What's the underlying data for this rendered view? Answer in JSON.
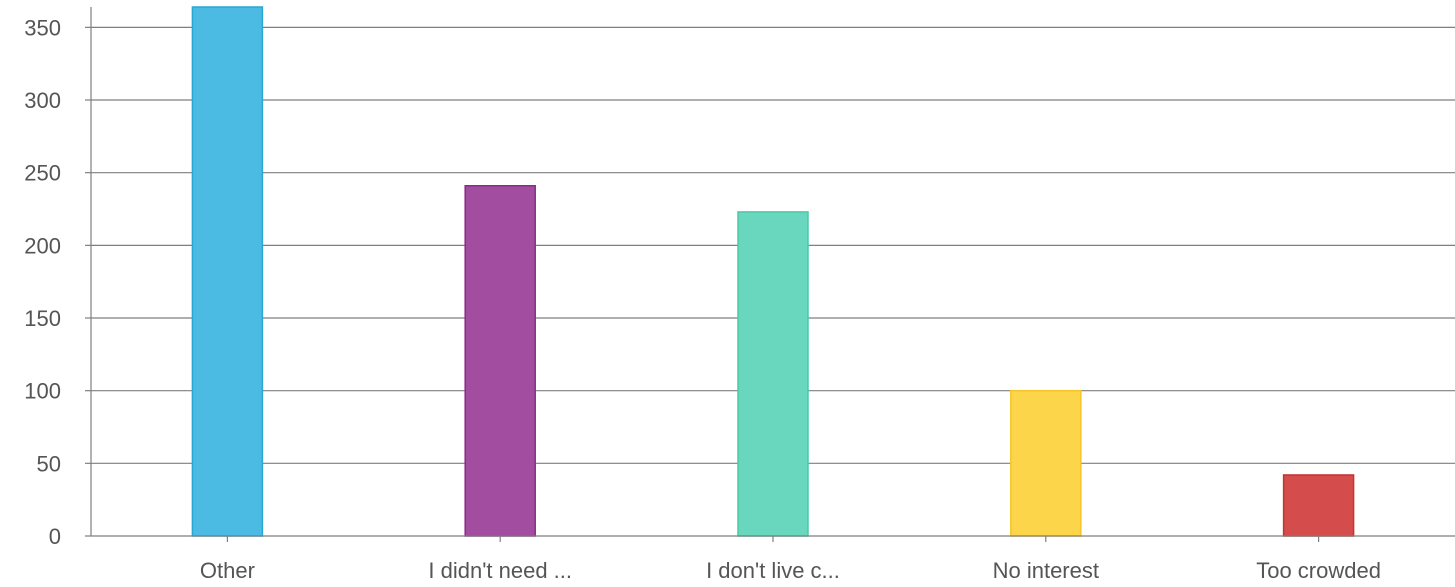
{
  "chart_data": {
    "type": "bar",
    "title": "",
    "xlabel": "",
    "ylabel": "",
    "categories": [
      "Other",
      "I didn't need ...",
      "I don't live c...",
      "No interest",
      "Too crowded"
    ],
    "values": [
      364,
      241,
      223,
      100,
      42
    ],
    "ylim": [
      0,
      364
    ],
    "yticks": [
      0,
      50,
      100,
      150,
      200,
      250,
      300,
      350
    ],
    "grid": true,
    "colors": [
      "#4cbbe3",
      "#a24da0",
      "#68d7bd",
      "#fdd54a",
      "#d44c4b"
    ],
    "border_colors": [
      "#2aa6d4",
      "#8a2b89",
      "#4ac8a8",
      "#f3c52a",
      "#c73232"
    ]
  }
}
